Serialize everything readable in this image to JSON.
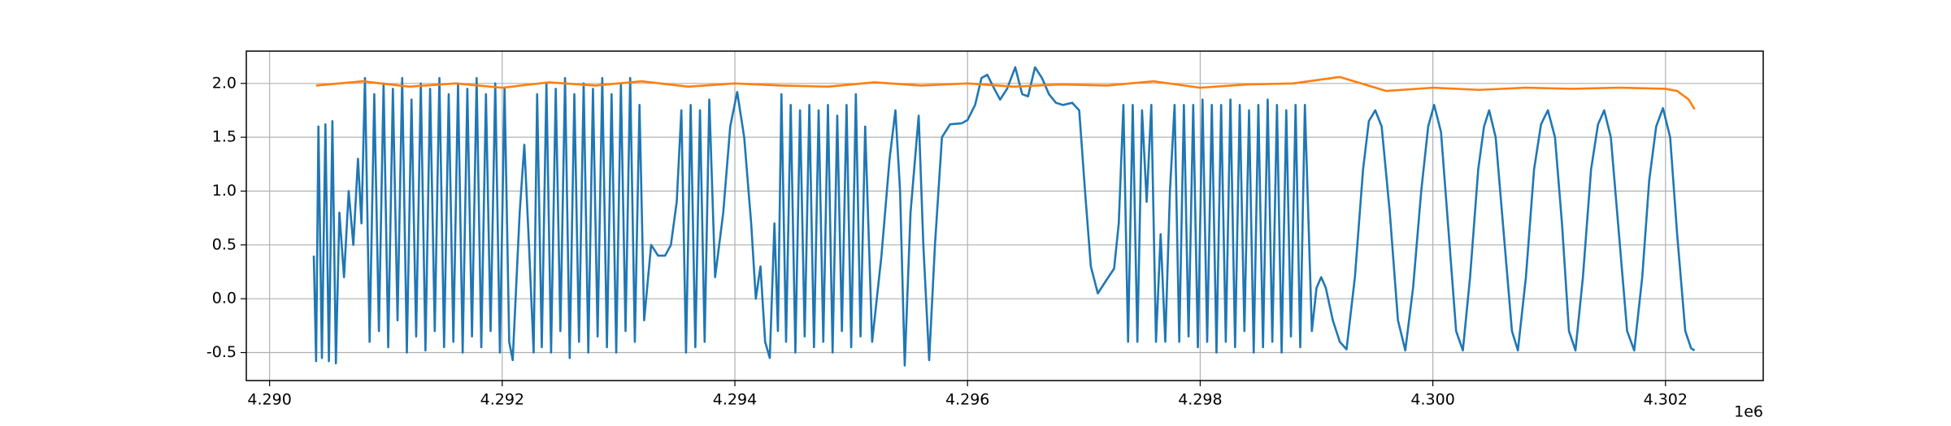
{
  "chart_data": {
    "type": "line",
    "x_offset_label": "1e6",
    "xlim": [
      4289800,
      4302840
    ],
    "ylim": [
      -0.76,
      2.3
    ],
    "xticks": [
      {
        "value": 4290000,
        "label": "4.290"
      },
      {
        "value": 4292000,
        "label": "4.292"
      },
      {
        "value": 4294000,
        "label": "4.294"
      },
      {
        "value": 4296000,
        "label": "4.296"
      },
      {
        "value": 4298000,
        "label": "4.298"
      },
      {
        "value": 4300000,
        "label": "4.300"
      },
      {
        "value": 4302000,
        "label": "4.302"
      }
    ],
    "yticks": [
      -0.5,
      {
        "value": 0,
        "label": "0.0"
      },
      0.5,
      {
        "value": 1,
        "label": "1.0"
      },
      1.5,
      {
        "value": 2,
        "label": "2.0"
      }
    ],
    "grid": true,
    "series": [
      {
        "color": "#1f77b4",
        "x": [
          4290380,
          4290400,
          4290420,
          4290450,
          4290480,
          4290510,
          4290540,
          4290570,
          4290600,
          4290640,
          4290680,
          4290720,
          4290760,
          4290790,
          4290820,
          4290860,
          4290900,
          4290940,
          4290980,
          4291020,
          4291060,
          4291100,
          4291140,
          4291180,
          4291220,
          4291260,
          4291300,
          4291340,
          4291380,
          4291420,
          4291460,
          4291500,
          4291540,
          4291580,
          4291620,
          4291660,
          4291700,
          4291740,
          4291780,
          4291820,
          4291860,
          4291900,
          4291940,
          4291980,
          4292020,
          4292060,
          4292090,
          4292150,
          4292190,
          4292230,
          4292270,
          4292300,
          4292340,
          4292380,
          4292420,
          4292460,
          4292500,
          4292540,
          4292580,
          4292620,
          4292660,
          4292700,
          4292740,
          4292780,
          4292820,
          4292860,
          4292900,
          4292940,
          4292980,
          4293020,
          4293060,
          4293100,
          4293140,
          4293180,
          4293220,
          4293280,
          4293340,
          4293400,
          4293450,
          4293500,
          4293540,
          4293580,
          4293620,
          4293660,
          4293700,
          4293740,
          4293780,
          4293830,
          4293900,
          4293960,
          4294020,
          4294080,
          4294140,
          4294180,
          4294220,
          4294260,
          4294300,
          4294340,
          4294370,
          4294400,
          4294440,
          4294480,
          4294520,
          4294560,
          4294600,
          4294640,
          4294680,
          4294720,
          4294760,
          4294800,
          4294840,
          4294880,
          4294920,
          4294960,
          4295000,
          4295040,
          4295080,
          4295120,
          4295180,
          4295260,
          4295330,
          4295380,
          4295420,
          4295460,
          4295510,
          4295580,
          4295620,
          4295670,
          4295720,
          4295780,
          4295850,
          4295950,
          4296000,
          4296065,
          4296120,
          4296170,
          4296230,
          4296280,
          4296340,
          4296410,
          4296470,
          4296520,
          4296580,
          4296640,
          4296700,
          4296760,
          4296820,
          4296900,
          4296960,
          4297010,
          4297060,
          4297120,
          4297180,
          4297260,
          4297300,
          4297340,
          4297380,
          4297420,
          4297460,
          4297500,
          4297540,
          4297580,
          4297620,
          4297660,
          4297700,
          4297740,
          4297780,
          4297820,
          4297860,
          4297900,
          4297940,
          4297980,
          4298020,
          4298060,
          4298100,
          4298140,
          4298180,
          4298220,
          4298260,
          4298300,
          4298340,
          4298380,
          4298420,
          4298460,
          4298500,
          4298540,
          4298580,
          4298620,
          4298660,
          4298700,
          4298740,
          4298780,
          4298820,
          4298860,
          4298900,
          4298960,
          4299000,
          4299040,
          4299080,
          4299140,
          4299200,
          4299258,
          4299330,
          4299400,
          4299450,
          4299505,
          4299560,
          4299630,
          4299700,
          4299763,
          4299830,
          4299900,
          4299960,
          4300011,
          4300070,
          4300130,
          4300200,
          4300258,
          4300320,
          4300390,
          4300440,
          4300484,
          4300540,
          4300610,
          4300680,
          4300731,
          4300800,
          4300870,
          4300930,
          4300989,
          4301050,
          4301110,
          4301170,
          4301226,
          4301290,
          4301360,
          4301420,
          4301473,
          4301530,
          4301600,
          4301670,
          4301731,
          4301800,
          4301860,
          4301920,
          4301978,
          4302040,
          4302100,
          4302170,
          4302220,
          4302250
        ],
        "values": [
          0.4,
          -0.58,
          1.6,
          -0.55,
          1.62,
          -0.58,
          1.65,
          -0.6,
          0.8,
          0.2,
          1.0,
          0.5,
          1.3,
          0.7,
          2.05,
          -0.4,
          1.9,
          -0.3,
          2.0,
          -0.45,
          1.95,
          -0.2,
          2.05,
          -0.5,
          1.85,
          -0.35,
          2.0,
          -0.48,
          1.95,
          -0.3,
          2.05,
          -0.45,
          1.9,
          -0.4,
          2.0,
          -0.5,
          1.95,
          -0.35,
          2.05,
          -0.45,
          1.9,
          -0.3,
          2.0,
          -0.5,
          1.95,
          -0.4,
          -0.57,
          0.8,
          1.43,
          0.5,
          -0.5,
          1.9,
          -0.45,
          2.0,
          -0.5,
          1.95,
          -0.3,
          2.05,
          -0.55,
          1.9,
          -0.4,
          2.0,
          -0.5,
          1.95,
          -0.35,
          2.05,
          -0.45,
          1.9,
          -0.5,
          2.0,
          -0.3,
          2.05,
          -0.4,
          1.8,
          -0.2,
          0.5,
          0.4,
          0.4,
          0.5,
          0.9,
          1.75,
          -0.5,
          1.8,
          -0.45,
          1.75,
          -0.4,
          1.85,
          0.2,
          0.8,
          1.6,
          1.92,
          1.5,
          0.7,
          0.0,
          0.3,
          -0.4,
          -0.55,
          0.7,
          -0.3,
          1.9,
          -0.4,
          1.8,
          -0.5,
          1.75,
          -0.35,
          1.8,
          -0.45,
          1.75,
          -0.4,
          1.8,
          -0.5,
          1.7,
          -0.3,
          1.8,
          -0.45,
          1.9,
          -0.35,
          1.6,
          -0.4,
          0.4,
          1.3,
          1.75,
          1.0,
          -0.62,
          0.8,
          1.7,
          0.5,
          -0.57,
          0.5,
          1.5,
          1.62,
          1.63,
          1.66,
          1.8,
          2.05,
          2.08,
          1.95,
          1.85,
          1.95,
          2.15,
          1.9,
          1.88,
          2.15,
          2.05,
          1.9,
          1.82,
          1.8,
          1.82,
          1.75,
          1.0,
          0.3,
          0.05,
          0.15,
          0.28,
          0.7,
          1.8,
          -0.4,
          1.8,
          -0.4,
          1.75,
          0.9,
          1.8,
          -0.4,
          0.6,
          -0.4,
          1.0,
          1.8,
          -0.4,
          1.8,
          -0.35,
          1.8,
          -0.45,
          1.85,
          -0.4,
          1.8,
          -0.5,
          1.8,
          -0.4,
          1.85,
          -0.45,
          1.8,
          -0.3,
          1.75,
          -0.5,
          1.8,
          -0.45,
          1.85,
          -0.4,
          1.8,
          -0.5,
          1.75,
          -0.35,
          1.8,
          -0.45,
          1.8,
          -0.3,
          0.1,
          0.2,
          0.1,
          -0.2,
          -0.4,
          -0.47,
          0.2,
          1.2,
          1.65,
          1.75,
          1.6,
          0.8,
          -0.2,
          -0.48,
          0.1,
          1.0,
          1.6,
          1.8,
          1.55,
          0.7,
          -0.3,
          -0.48,
          0.2,
          1.2,
          1.6,
          1.75,
          1.5,
          0.6,
          -0.3,
          -0.48,
          0.2,
          1.2,
          1.62,
          1.75,
          1.5,
          0.7,
          -0.3,
          -0.48,
          0.2,
          1.2,
          1.62,
          1.75,
          1.5,
          0.6,
          -0.3,
          -0.48,
          0.2,
          1.1,
          1.6,
          1.77,
          1.5,
          0.6,
          -0.3,
          -0.46,
          -0.48
        ]
      },
      {
        "color": "#ff7f0e",
        "x": [
          4290400,
          4290800,
          4291200,
          4291600,
          4292000,
          4292400,
          4292800,
          4293200,
          4293600,
          4294000,
          4294400,
          4294800,
          4295200,
          4295600,
          4296000,
          4296400,
          4296800,
          4297200,
          4297600,
          4298000,
          4298400,
          4298800,
          4299200,
          4299600,
          4300000,
          4300400,
          4300800,
          4301200,
          4301600,
          4302000,
          4302100,
          4302200,
          4302250
        ],
        "values": [
          1.98,
          2.02,
          1.97,
          2.0,
          1.96,
          2.01,
          1.98,
          2.02,
          1.97,
          2.0,
          1.98,
          1.97,
          2.01,
          1.98,
          2.0,
          1.97,
          1.99,
          1.98,
          2.02,
          1.96,
          1.99,
          2.0,
          2.06,
          1.93,
          1.96,
          1.94,
          1.96,
          1.95,
          1.96,
          1.95,
          1.93,
          1.85,
          1.76
        ]
      }
    ]
  }
}
